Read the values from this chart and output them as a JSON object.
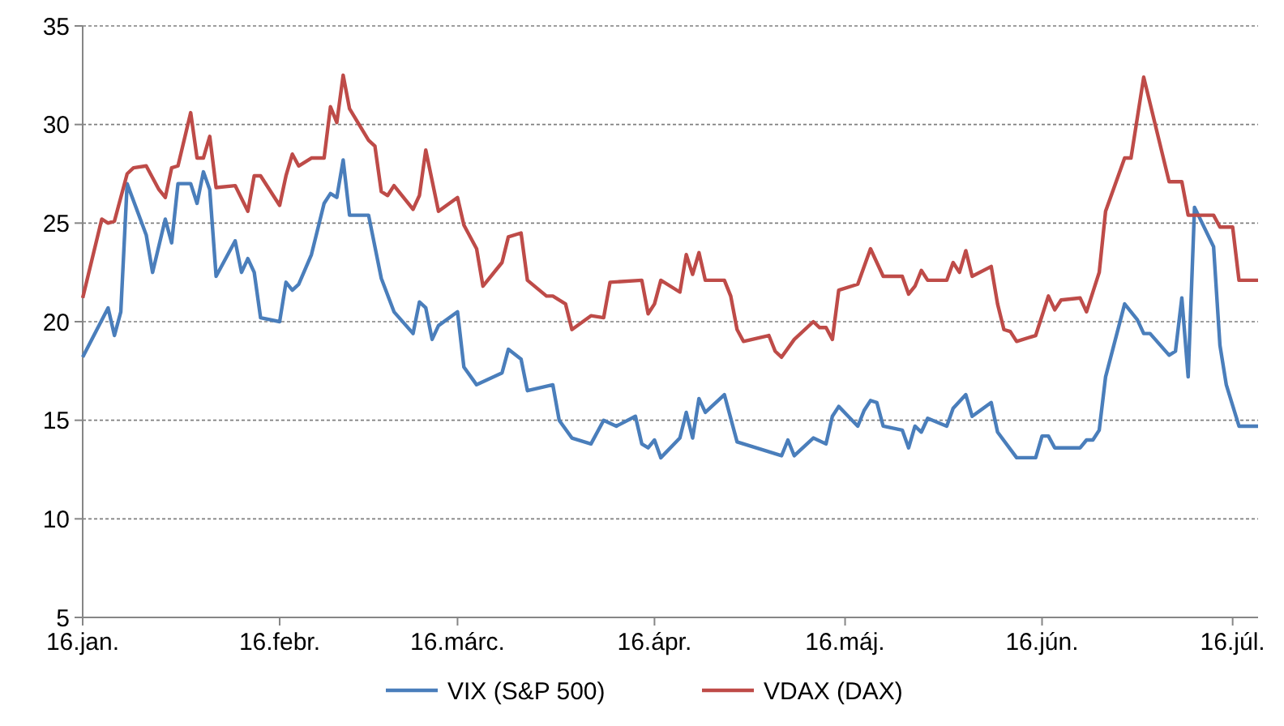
{
  "chart_data": {
    "type": "line",
    "legend": "bottom",
    "grid": "y",
    "line_style": "solid",
    "xlim": [
      "--01-16",
      "--07-20"
    ],
    "xticks": [
      {
        "value": "--01-16",
        "label": "16.jan."
      },
      {
        "value": "--02-16",
        "label": "16.febr."
      },
      {
        "value": "--03-16",
        "label": "16.márc."
      },
      {
        "value": "--04-16",
        "label": "16.ápr."
      },
      {
        "value": "--05-16",
        "label": "16.máj."
      },
      {
        "value": "--06-16",
        "label": "16.jún."
      },
      {
        "value": "--07-16",
        "label": "16.júl."
      }
    ],
    "ylim": [
      5,
      35
    ],
    "yticks": [
      5,
      10,
      15,
      20,
      25,
      30,
      35
    ],
    "series": [
      {
        "name": "VIX (S&P 500)",
        "color": "#4a7ebb",
        "x": [
          "--01-16",
          "--01-20",
          "--01-21",
          "--01-22",
          "--01-23",
          "--01-26",
          "--01-27",
          "--01-29",
          "--01-30",
          "--01-31",
          "--02-02",
          "--02-03",
          "--02-04",
          "--02-05",
          "--02-06",
          "--02-09",
          "--02-10",
          "--02-11",
          "--02-12",
          "--02-13",
          "--02-16",
          "--02-17",
          "--02-18",
          "--02-19",
          "--02-21",
          "--02-23",
          "--02-24",
          "--02-25",
          "--02-26",
          "--02-27",
          "--03-02",
          "--03-04",
          "--03-06",
          "--03-09",
          "--03-10",
          "--03-11",
          "--03-12",
          "--03-13",
          "--03-16",
          "--03-17",
          "--03-19",
          "--03-23",
          "--03-24",
          "--03-26",
          "--03-27",
          "--03-31",
          "--04-01",
          "--04-03",
          "--04-06",
          "--04-08",
          "--04-10",
          "--04-13",
          "--04-14",
          "--04-15",
          "--04-16",
          "--04-17",
          "--04-20",
          "--04-21",
          "--04-22",
          "--04-23",
          "--04-24",
          "--04-27",
          "--04-29",
          "--05-06",
          "--05-07",
          "--05-08",
          "--05-11",
          "--05-13",
          "--05-14",
          "--05-15",
          "--05-18",
          "--05-19",
          "--05-20",
          "--05-21",
          "--05-22",
          "--05-25",
          "--05-26",
          "--05-27",
          "--05-28",
          "--05-29",
          "--06-01",
          "--06-02",
          "--06-04",
          "--06-05",
          "--06-08",
          "--06-09",
          "--06-12",
          "--06-15",
          "--06-16",
          "--06-17",
          "--06-18",
          "--06-22",
          "--06-23",
          "--06-24",
          "--06-25",
          "--06-26",
          "--06-29",
          "--07-01",
          "--07-02",
          "--07-03",
          "--07-06",
          "--07-07",
          "--07-08",
          "--07-09",
          "--07-10",
          "--07-13",
          "--07-14",
          "--07-15",
          "--07-17",
          "--07-20"
        ],
        "values": [
          18.2,
          20.7,
          19.3,
          20.5,
          27.0,
          24.4,
          22.5,
          25.2,
          24.0,
          27.0,
          27.0,
          26.0,
          27.6,
          26.7,
          22.3,
          24.1,
          22.5,
          23.2,
          22.5,
          20.2,
          20.0,
          22.0,
          21.6,
          21.9,
          23.4,
          26.0,
          26.5,
          26.3,
          28.2,
          25.4,
          25.4,
          22.2,
          20.5,
          19.4,
          21.0,
          20.7,
          19.1,
          19.8,
          20.5,
          17.7,
          16.8,
          17.4,
          18.6,
          18.1,
          16.5,
          16.8,
          15.0,
          14.1,
          13.8,
          15.0,
          14.7,
          15.2,
          13.8,
          13.6,
          14.0,
          13.1,
          14.1,
          15.4,
          14.1,
          16.1,
          15.4,
          16.3,
          13.9,
          13.2,
          14.0,
          13.2,
          14.1,
          13.8,
          15.2,
          15.7,
          14.7,
          15.5,
          16.0,
          15.9,
          14.7,
          14.5,
          13.6,
          14.7,
          14.4,
          15.1,
          14.7,
          15.6,
          16.3,
          15.2,
          15.9,
          14.4,
          13.1,
          13.1,
          14.2,
          14.2,
          13.6,
          13.6,
          14.0,
          14.0,
          14.5,
          17.2,
          20.9,
          20.1,
          19.4,
          19.4,
          18.3,
          18.5,
          21.2,
          17.2,
          25.8,
          23.8,
          18.8,
          16.8,
          14.7,
          14.7
        ]
      },
      {
        "name": "VDAX (DAX)",
        "color": "#be4b48",
        "x": [
          "--01-16",
          "--01-19",
          "--01-20",
          "--01-21",
          "--01-23",
          "--01-24",
          "--01-26",
          "--01-28",
          "--01-29",
          "--01-30",
          "--01-31",
          "--02-02",
          "--02-03",
          "--02-04",
          "--02-05",
          "--02-06",
          "--02-09",
          "--02-11",
          "--02-12",
          "--02-13",
          "--02-16",
          "--02-17",
          "--02-18",
          "--02-19",
          "--02-21",
          "--02-23",
          "--02-24",
          "--02-25",
          "--02-26",
          "--02-27",
          "--03-02",
          "--03-03",
          "--03-04",
          "--03-05",
          "--03-06",
          "--03-09",
          "--03-10",
          "--03-11",
          "--03-13",
          "--03-16",
          "--03-17",
          "--03-19",
          "--03-20",
          "--03-23",
          "--03-24",
          "--03-26",
          "--03-27",
          "--03-30",
          "--03-31",
          "--04-02",
          "--04-03",
          "--04-06",
          "--04-08",
          "--04-09",
          "--04-14",
          "--04-15",
          "--04-16",
          "--04-17",
          "--04-20",
          "--04-21",
          "--04-22",
          "--04-23",
          "--04-24",
          "--04-27",
          "--04-28",
          "--04-29",
          "--04-30",
          "--05-04",
          "--05-05",
          "--05-06",
          "--05-08",
          "--05-11",
          "--05-12",
          "--05-13",
          "--05-14",
          "--05-15",
          "--05-18",
          "--05-20",
          "--05-22",
          "--05-25",
          "--05-26",
          "--05-27",
          "--05-28",
          "--05-29",
          "--06-01",
          "--06-02",
          "--06-03",
          "--06-04",
          "--06-05",
          "--06-08",
          "--06-09",
          "--06-10",
          "--06-11",
          "--06-12",
          "--06-15",
          "--06-17",
          "--06-18",
          "--06-19",
          "--06-22",
          "--06-23",
          "--06-25",
          "--06-26",
          "--06-29",
          "--06-30",
          "--07-02",
          "--07-06",
          "--07-08",
          "--07-09",
          "--07-13",
          "--07-14",
          "--07-16",
          "--07-17",
          "--07-20"
        ],
        "values": [
          21.2,
          25.2,
          25.0,
          25.1,
          27.5,
          27.8,
          27.9,
          26.7,
          26.3,
          27.8,
          27.9,
          30.6,
          28.3,
          28.3,
          29.4,
          26.8,
          26.9,
          25.6,
          27.4,
          27.4,
          25.9,
          27.4,
          28.5,
          27.9,
          28.3,
          28.3,
          30.9,
          30.1,
          32.5,
          30.8,
          29.2,
          28.9,
          26.6,
          26.4,
          26.9,
          25.7,
          26.4,
          28.7,
          25.6,
          26.3,
          24.9,
          23.7,
          21.8,
          23.0,
          24.3,
          24.5,
          22.1,
          21.3,
          21.3,
          20.9,
          19.6,
          20.3,
          20.2,
          22.0,
          22.1,
          20.4,
          20.9,
          22.1,
          21.5,
          23.4,
          22.4,
          23.5,
          22.1,
          22.1,
          21.3,
          19.6,
          19.0,
          19.3,
          18.5,
          18.2,
          19.1,
          20.0,
          19.7,
          19.7,
          19.1,
          21.6,
          21.9,
          23.7,
          22.3,
          22.3,
          21.4,
          21.8,
          22.6,
          22.1,
          22.1,
          23.0,
          22.5,
          23.6,
          22.3,
          22.8,
          20.9,
          19.6,
          19.5,
          19.0,
          19.3,
          21.3,
          20.6,
          21.1,
          21.2,
          20.5,
          22.5,
          25.6,
          28.3,
          28.3,
          32.4,
          27.1,
          27.1,
          25.4,
          25.4,
          24.8,
          24.8,
          22.1,
          22.1
        ]
      }
    ]
  }
}
